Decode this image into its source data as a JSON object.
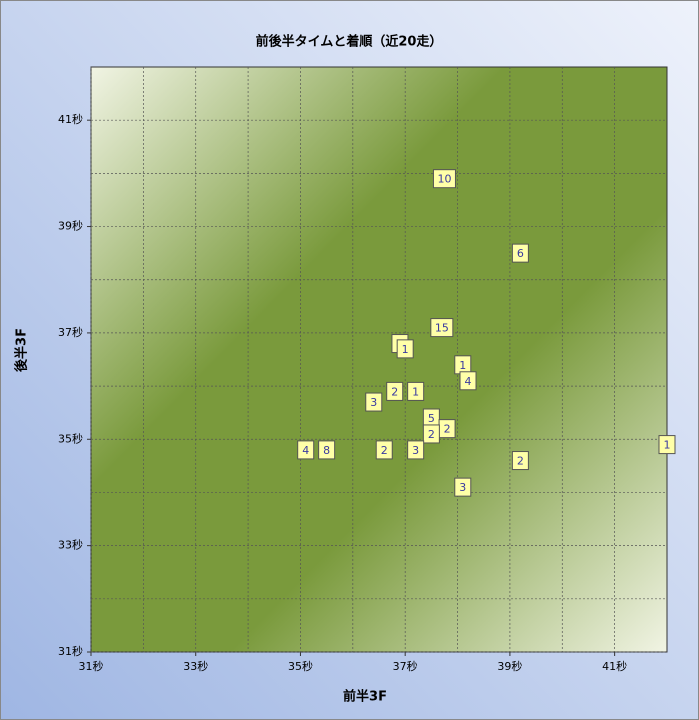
{
  "chart_data": {
    "type": "scatter",
    "title": "前後半タイムと着順（近20走）",
    "x_label": "前半3F",
    "y_label": "後半3F",
    "x": [
      37.75,
      39.2,
      37.7,
      36.9,
      37.0,
      38.1,
      38.2,
      36.8,
      37.2,
      36.4,
      37.5,
      37.8,
      37.5,
      42.0,
      35.1,
      35.5,
      36.6,
      37.2,
      39.2,
      38.1
    ],
    "y": [
      39.9,
      38.5,
      37.1,
      36.8,
      36.7,
      36.4,
      36.1,
      35.9,
      35.9,
      35.7,
      35.4,
      35.2,
      35.1,
      34.9,
      34.8,
      34.8,
      34.8,
      34.8,
      34.6,
      34.1
    ],
    "labels": [
      "10",
      "6",
      "15",
      "1",
      "1",
      "1",
      "4",
      "2",
      "1",
      "3",
      "5",
      "2",
      "2",
      "1",
      "4",
      "8",
      "2",
      "3",
      "2",
      "3"
    ],
    "xlim": [
      31,
      42
    ],
    "ylim": [
      31,
      42
    ],
    "xticks": [
      {
        "value": 31,
        "label": "31秒"
      },
      {
        "value": 33,
        "label": "33秒"
      },
      {
        "value": 35,
        "label": "35秒"
      },
      {
        "value": 37,
        "label": "37秒"
      },
      {
        "value": 39,
        "label": "39秒"
      },
      {
        "value": 41,
        "label": "41秒"
      }
    ],
    "yticks": [
      {
        "value": 31,
        "label": "31秒"
      },
      {
        "value": 33,
        "label": "33秒"
      },
      {
        "value": 35,
        "label": "35秒"
      },
      {
        "value": 37,
        "label": "37秒"
      },
      {
        "value": 39,
        "label": "39秒"
      },
      {
        "value": 41,
        "label": "41秒"
      }
    ],
    "xminorticks": [
      32,
      34,
      36,
      38,
      40
    ],
    "yminorticks": [
      32,
      34,
      36,
      38,
      40
    ],
    "grid": true,
    "marker_color": "#ffffa8",
    "label_color": "#3a3aa0"
  }
}
